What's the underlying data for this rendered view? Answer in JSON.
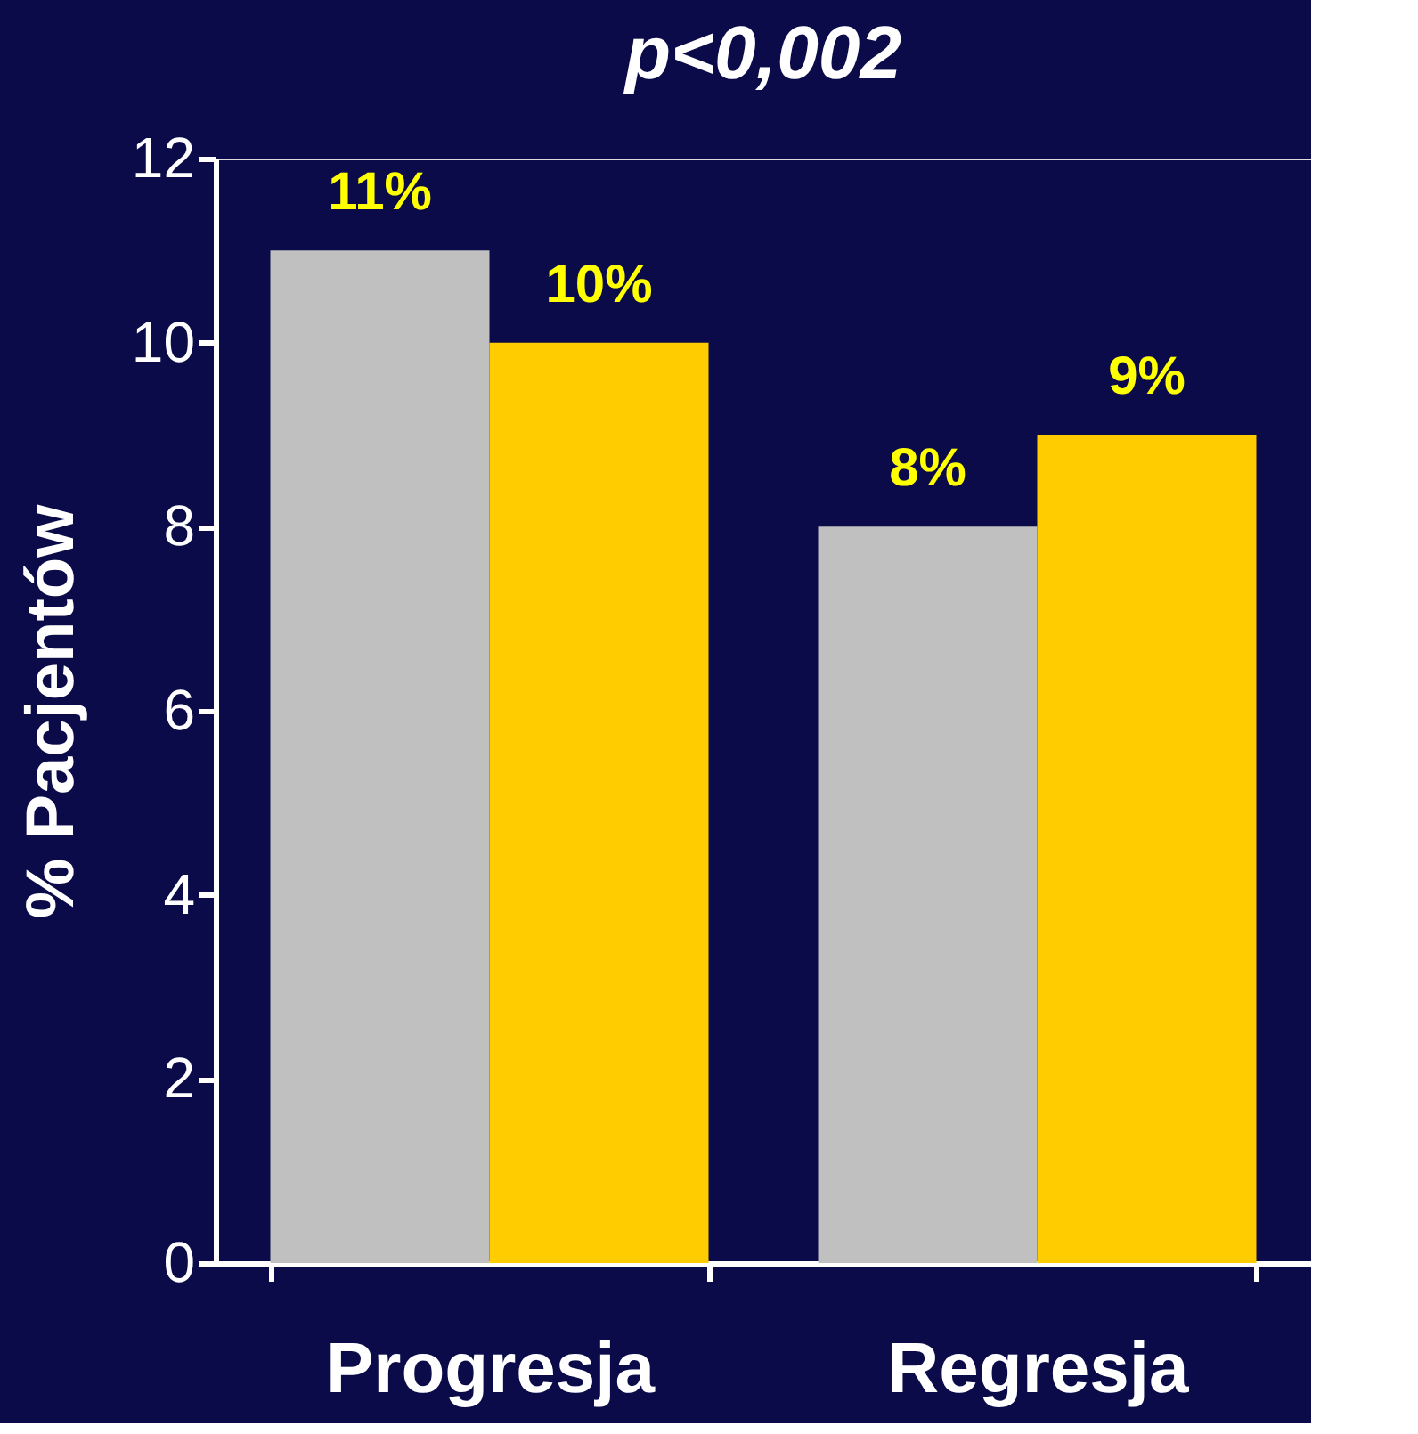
{
  "chart_data": {
    "type": "bar",
    "title": "p<0,002",
    "ylabel": "% Pacjentów",
    "categories": [
      "Progresja",
      "Regresja"
    ],
    "series": [
      {
        "color": "#c0c0c0",
        "values": [
          11,
          8
        ],
        "value_labels": [
          "11%",
          "8%"
        ]
      },
      {
        "color": "#ffcc00",
        "values": [
          10,
          9
        ],
        "value_labels": [
          "10%",
          "9%"
        ]
      }
    ],
    "ylim": [
      0,
      12
    ],
    "yticks": [
      0,
      2,
      4,
      6,
      8,
      10,
      12
    ],
    "grid": false,
    "legend": false
  }
}
